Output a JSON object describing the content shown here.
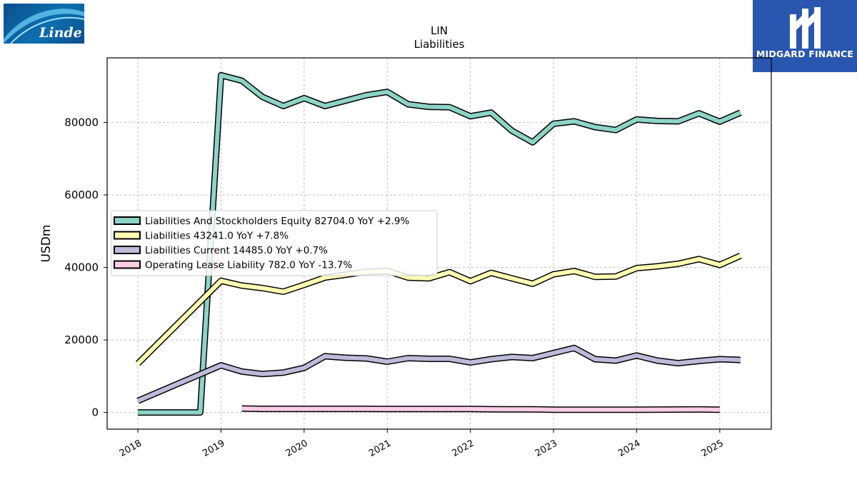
{
  "logos": {
    "left": {
      "text": "Linde",
      "icon": "linde-swoosh-logo"
    },
    "right": {
      "text": "MIDGARD FINANCE",
      "icon": "midgard-m-logo"
    }
  },
  "chart_data": {
    "type": "line",
    "title": "LIN",
    "subtitle": "Liabilities",
    "xlabel": "",
    "ylabel": "USDm",
    "xlim": [
      2017.63,
      2025.62
    ],
    "ylim": [
      -4600,
      97800
    ],
    "x_ticks": [
      2018,
      2019,
      2020,
      2021,
      2022,
      2023,
      2024,
      2025
    ],
    "x_tick_labels": [
      "2018",
      "2019",
      "2020",
      "2021",
      "2022",
      "2023",
      "2024",
      "2025"
    ],
    "y_ticks": [
      0,
      20000,
      40000,
      60000,
      80000
    ],
    "y_tick_labels": [
      "0",
      "20000",
      "40000",
      "60000",
      "80000"
    ],
    "grid": true,
    "legend_position": "center-left",
    "series": [
      {
        "name": "Liabilities And Stockholders Equity",
        "legend_label": "Liabilities And Stockholders Equity  82704.0 YoY +2.9%",
        "color": "#8dd3c7",
        "x": [
          2018.0,
          2018.75,
          2019.0,
          2019.25,
          2019.5,
          2019.75,
          2020.0,
          2020.25,
          2020.5,
          2020.75,
          2021.0,
          2021.25,
          2021.5,
          2021.75,
          2022.0,
          2022.25,
          2022.5,
          2022.75,
          2023.0,
          2023.25,
          2023.5,
          2023.75,
          2024.0,
          2024.25,
          2024.5,
          2024.75,
          2025.0,
          2025.25
        ],
        "y": [
          0,
          0,
          93000,
          91500,
          87000,
          84500,
          86700,
          84500,
          86000,
          87500,
          88400,
          85000,
          84300,
          84200,
          81700,
          82700,
          77700,
          74500,
          79600,
          80300,
          78700,
          77900,
          80800,
          80400,
          80300,
          82500,
          80200,
          82700
        ]
      },
      {
        "name": "Liabilities",
        "legend_label": "Liabilities  43241.0 YoY +7.8%",
        "color": "#ffffb3",
        "x": [
          2018.0,
          2019.0,
          2019.25,
          2019.5,
          2019.75,
          2020.0,
          2020.25,
          2020.5,
          2020.75,
          2021.0,
          2021.25,
          2021.5,
          2021.75,
          2022.0,
          2022.25,
          2022.5,
          2022.75,
          2023.0,
          2023.25,
          2023.5,
          2023.75,
          2024.0,
          2024.25,
          2024.5,
          2024.75,
          2025.0,
          2025.25
        ],
        "y": [
          13500,
          36300,
          35000,
          34300,
          33300,
          35200,
          37200,
          38000,
          38800,
          39000,
          37200,
          37000,
          38700,
          36200,
          38500,
          37000,
          35500,
          38100,
          39000,
          37400,
          37500,
          39800,
          40300,
          41000,
          42300,
          40700,
          43241
        ]
      },
      {
        "name": "Liabilities Current",
        "legend_label": "Liabilities Current  14485.0 YoY +0.7%",
        "color": "#bebada",
        "x": [
          2018.0,
          2019.0,
          2019.25,
          2019.5,
          2019.75,
          2020.0,
          2020.25,
          2020.5,
          2020.75,
          2021.0,
          2021.25,
          2021.5,
          2021.75,
          2022.0,
          2022.25,
          2022.5,
          2022.75,
          2023.0,
          2023.25,
          2023.5,
          2023.75,
          2024.0,
          2024.25,
          2024.5,
          2024.75,
          2025.0,
          2025.25
        ],
        "y": [
          3200,
          13000,
          11300,
          10600,
          11000,
          12300,
          15500,
          15100,
          14900,
          14000,
          15000,
          14800,
          14800,
          13800,
          14700,
          15300,
          15000,
          16400,
          17800,
          14700,
          14300,
          15700,
          14300,
          13600,
          14200,
          14700,
          14485
        ]
      },
      {
        "name": "Operating Lease Liability",
        "legend_label": "Operating Lease Liability  782.0 YoY -13.7%",
        "color": "#fccde5",
        "x": [
          2019.25,
          2019.5,
          2019.75,
          2020.0,
          2020.25,
          2020.5,
          2020.75,
          2021.0,
          2021.25,
          2021.5,
          2021.75,
          2022.0,
          2022.25,
          2022.5,
          2022.75,
          2023.0,
          2023.25,
          2023.5,
          2023.75,
          2024.0,
          2024.25,
          2024.5,
          2024.75,
          2025.0
        ],
        "y": [
          1100,
          1000,
          1000,
          1000,
          1000,
          1000,
          1000,
          950,
          950,
          950,
          950,
          950,
          900,
          880,
          860,
          780,
          760,
          760,
          760,
          780,
          800,
          820,
          830,
          782
        ]
      }
    ]
  }
}
